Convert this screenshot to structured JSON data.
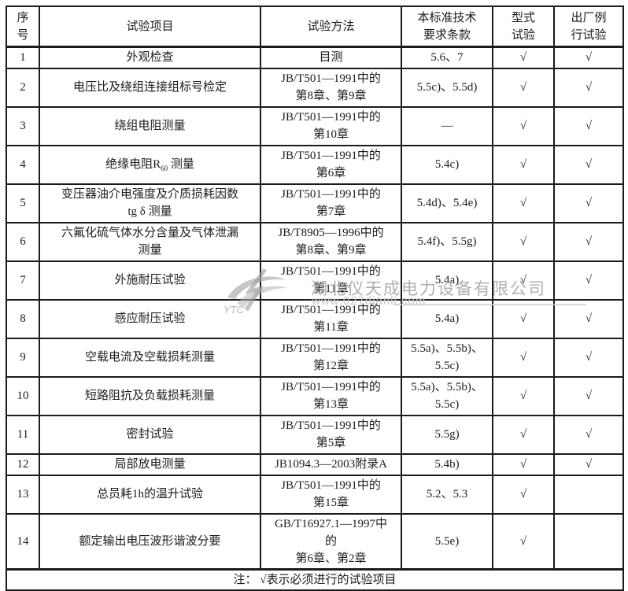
{
  "table": {
    "headers": [
      "序\n号",
      "试验项目",
      "试验方法",
      "本标准技术\n要求条款",
      "型式\n试验",
      "出厂例\n行试验"
    ],
    "check_mark": "√",
    "rows": [
      {
        "no": "1",
        "item": "外观检查",
        "method": "目测",
        "clause": "5.6、7",
        "type_test": "√",
        "routine_test": "√"
      },
      {
        "no": "2",
        "item": "电压比及绕组连接组标号检定",
        "method": "JB/T501—1991中的\n第8章、第9章",
        "clause": "5.5c)、5.5d)",
        "type_test": "√",
        "routine_test": "√"
      },
      {
        "no": "3",
        "item": "绕组电阻测量",
        "method": "JB/T501—1991中的\n第10章",
        "clause": "—",
        "type_test": "√",
        "routine_test": "√"
      },
      {
        "no": "4",
        "item_segments": [
          {
            "t": "绝缘电阻R"
          },
          {
            "t": "60",
            "sub": true
          },
          {
            "t": " 测量"
          }
        ],
        "method": "JB/T501—1991中的\n第6章",
        "clause": "5.4c)",
        "type_test": "√",
        "routine_test": "√"
      },
      {
        "no": "5",
        "item": "变压器油介电强度及介质损耗因数\ntg δ 测量",
        "method": "JB/T501—1991中的\n第7章",
        "clause": "5.4d)、5.4e)",
        "type_test": "√",
        "routine_test": "√"
      },
      {
        "no": "6",
        "item": "六氟化硫气体水分含量及气体泄漏\n测量",
        "method": "JB/T8905—1996中的\n第8章、第9章",
        "clause": "5.4f)、5.5g)",
        "type_test": "√",
        "routine_test": "√"
      },
      {
        "no": "7",
        "item": "外施耐压试验",
        "method": "JB/T501—1991中的\n第11章",
        "clause": "5.4a)",
        "type_test": "√",
        "routine_test": "√"
      },
      {
        "no": "8",
        "item": "感应耐压试验",
        "method": "JB/T501—1991中的\n第11章",
        "clause": "5.4a)",
        "type_test": "√",
        "routine_test": "√"
      },
      {
        "no": "9",
        "item": "空载电流及空载损耗测量",
        "method": "JB/T501—1991中的\n第12章",
        "clause": "5.5a)、5.5b)、\n5.5c)",
        "type_test": "√",
        "routine_test": "√"
      },
      {
        "no": "10",
        "item": "短路阻抗及负载损耗测量",
        "method": "JB/T501—1991中的\n第13章",
        "clause": "5.5a)、5.5b)、\n5.5c)",
        "type_test": "√",
        "routine_test": "√"
      },
      {
        "no": "11",
        "item": "密封试验",
        "method": "JB/T501—1991中的\n第5章",
        "clause": "5.5g)",
        "type_test": "√",
        "routine_test": "√"
      },
      {
        "no": "12",
        "item": "局部放电测量",
        "method": "JB1094.3—2003附录A",
        "clause": "5.4b)",
        "type_test": "√",
        "routine_test": "√"
      },
      {
        "no": "13",
        "item": "总员耗1h的温升试验",
        "method": "JB/T501—1991中的\n第15章",
        "clause": "5.2、5.3",
        "type_test": "√",
        "routine_test": ""
      },
      {
        "no": "14",
        "item": "额定输出电压波形谐波分要",
        "method": "GB/T16927.1—1997中\n的\n第6章、第2章",
        "clause": "5.5e)",
        "type_test": "√",
        "routine_test": ""
      }
    ],
    "note": "注： √表示必须进行的试验项目"
  },
  "watermark": {
    "company": "湖北仪天成电力设备有限公司",
    "url": "www.027dianli.com",
    "logo_text": "YTC"
  },
  "colors": {
    "border": "#1b1b1b",
    "text": "#1c1c1c",
    "watermark_gray": "#a3a3a3",
    "watermark_light": "#c6c6c6"
  }
}
